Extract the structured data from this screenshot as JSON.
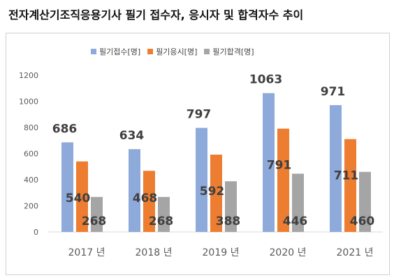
{
  "title": "전자계산기조직응용기사 필기 접수자, 응시자 및 합격자수 추이",
  "chart_data": {
    "type": "bar",
    "categories": [
      "2017 년",
      "2018 년",
      "2019 년",
      "2020 년",
      "2021 년"
    ],
    "series": [
      {
        "name": "필기접수[명]",
        "values": [
          686,
          634,
          797,
          1063,
          971
        ],
        "color": "#8eaadb"
      },
      {
        "name": "필기응시[명]",
        "values": [
          540,
          468,
          592,
          791,
          711
        ],
        "color": "#ed7d31"
      },
      {
        "name": "필기합격[명]",
        "values": [
          268,
          268,
          388,
          446,
          460
        ],
        "color": "#a5a5a5"
      }
    ],
    "ylim": [
      0,
      1200
    ],
    "yticks": [
      0,
      200,
      400,
      600,
      800,
      1000,
      1200
    ],
    "grid": false,
    "legend": "top-center"
  }
}
